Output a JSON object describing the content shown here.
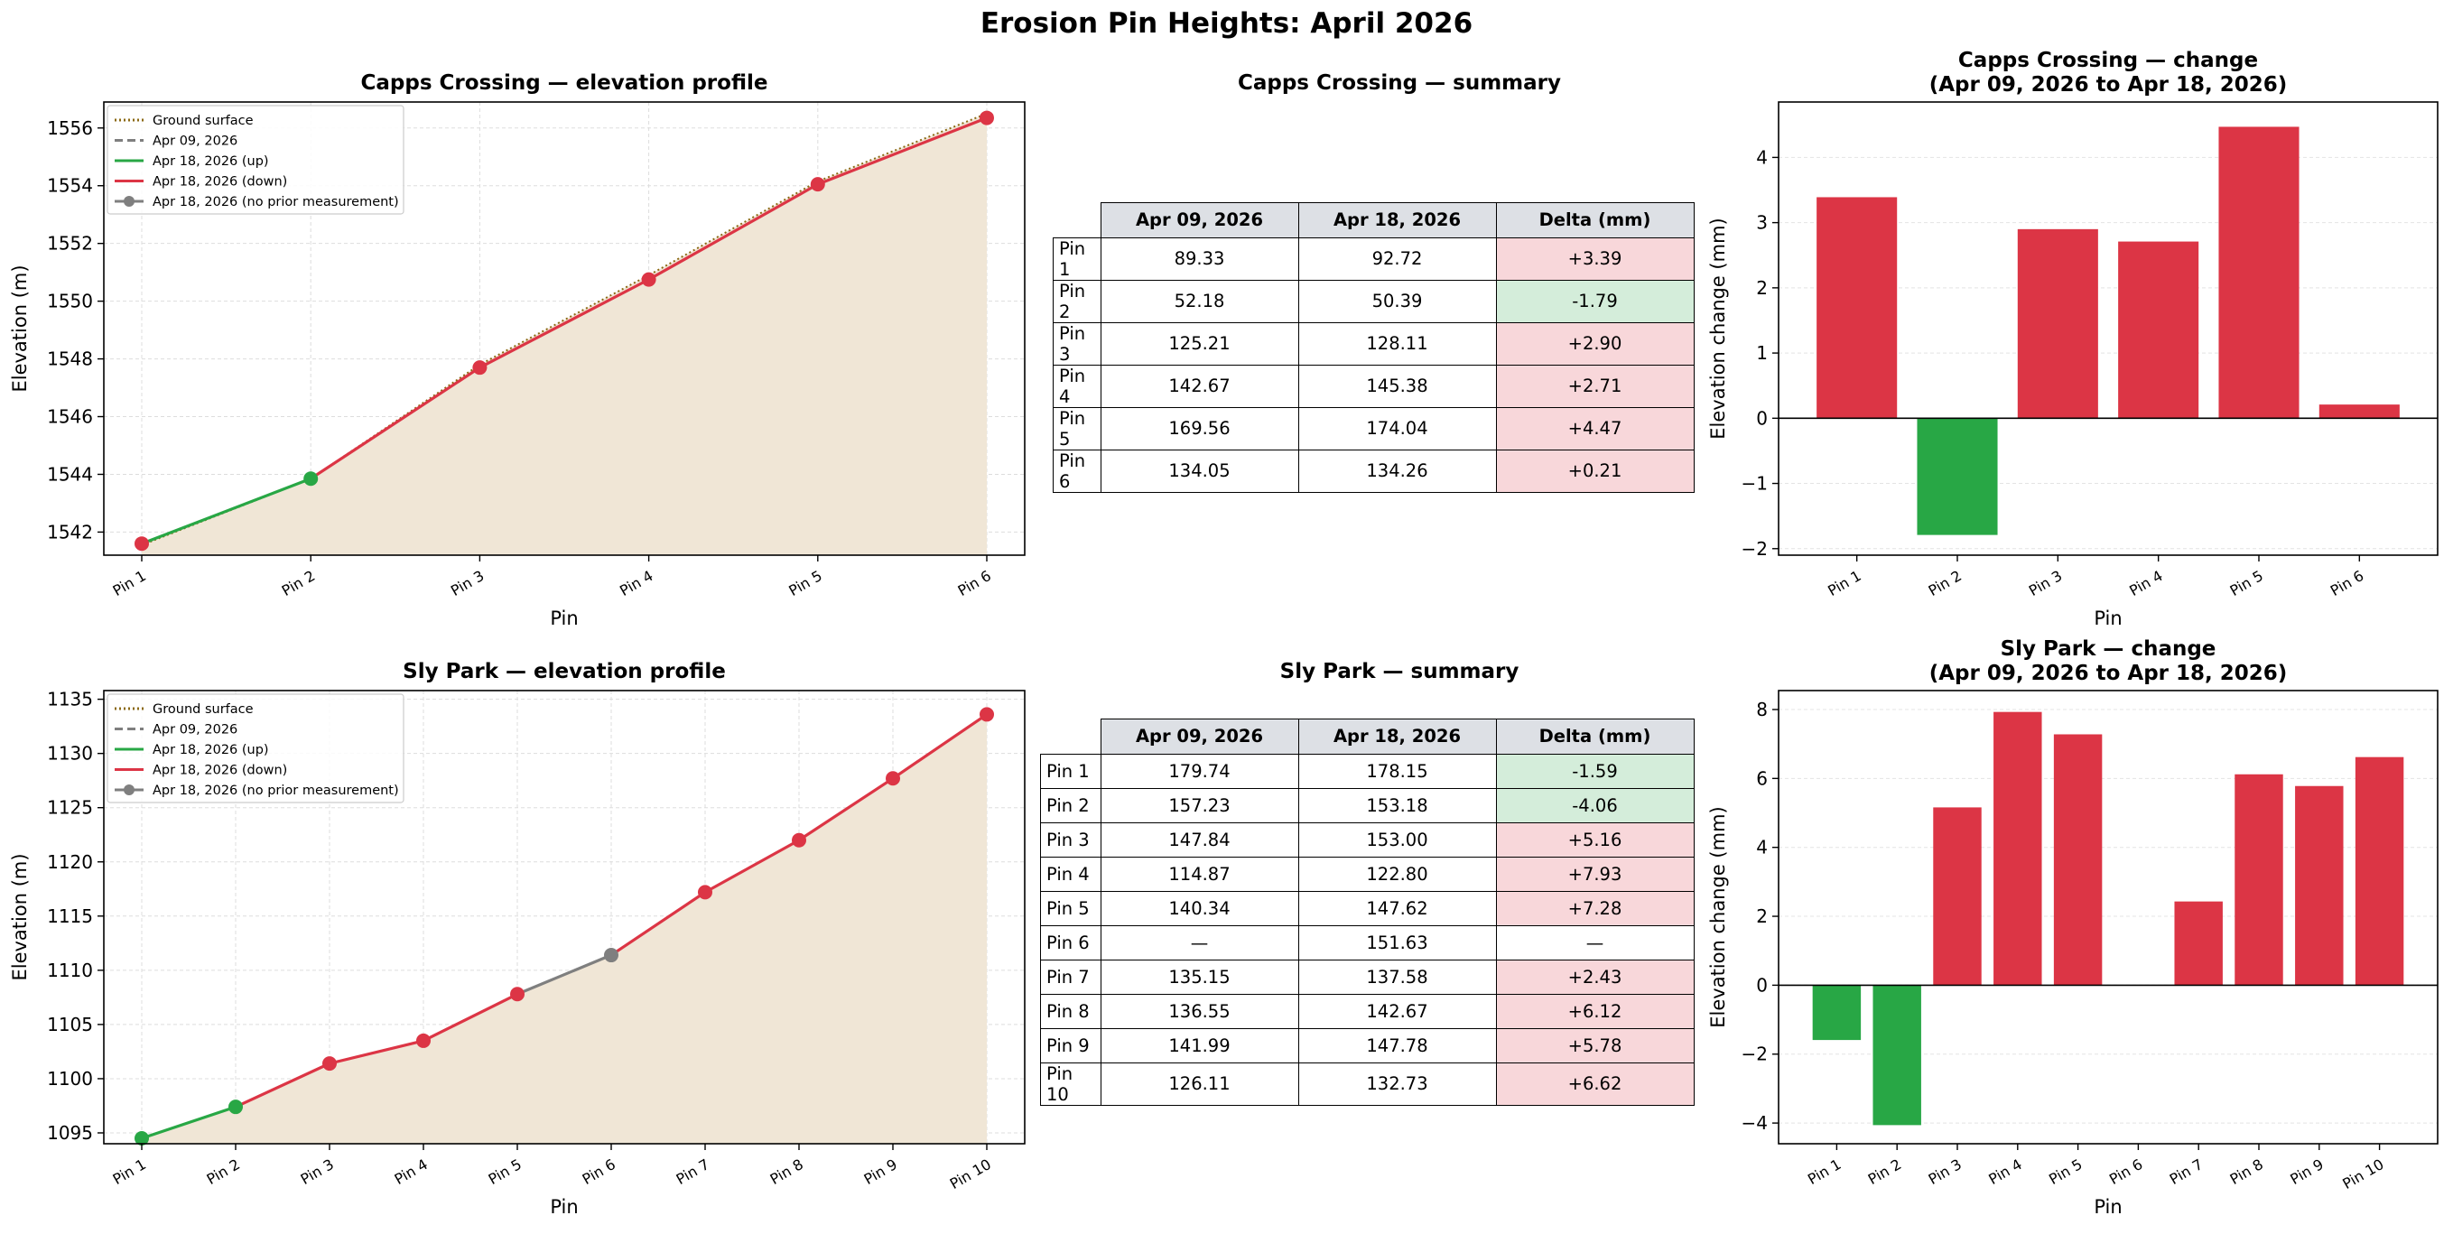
{
  "title": "Erosion Pin Heights: April 2026",
  "colors": {
    "up": "#28a745",
    "down": "#dc3545",
    "none": "#7f7f7f",
    "ground": "#8b6914",
    "fill": "#f0e6d6",
    "header": "#dde0e5",
    "pos_cell": "#f8d7da",
    "neg_cell": "#d4edda"
  },
  "legend": [
    "Ground surface",
    "Apr 09, 2026",
    "Apr 18, 2026 (up)",
    "Apr 18, 2026 (down)",
    "Apr 18, 2026 (no prior measurement)"
  ],
  "table_headers": [
    "Apr 09, 2026",
    "Apr 18, 2026",
    "Delta (mm)"
  ],
  "sites": [
    {
      "name": "Capps Crossing",
      "profile_title": "Capps Crossing — elevation profile",
      "summary_title": "Capps Crossing — summary",
      "change_title_1": "Capps Crossing — change",
      "change_title_2": "(Apr 09, 2026 to Apr 18, 2026)",
      "chart_data": {
        "type": "line",
        "xlabel": "Pin",
        "ylabel": "Elevation (m)",
        "categories": [
          "Pin 1",
          "Pin 2",
          "Pin 3",
          "Pin 4",
          "Pin 5",
          "Pin 6"
        ],
        "ylim": [
          1541.2,
          1556.9
        ],
        "yticks": [
          1542,
          1544,
          1546,
          1548,
          1550,
          1552,
          1554,
          1556
        ],
        "ground": [
          1541.55,
          1543.85,
          1547.8,
          1550.9,
          1554.15,
          1556.5
        ],
        "elevations": [
          1541.6,
          1543.85,
          1547.7,
          1550.75,
          1554.05,
          1556.35
        ],
        "directions": [
          "down",
          "up",
          "down",
          "down",
          "down",
          "down"
        ]
      },
      "rows": [
        {
          "pin": "Pin 1",
          "a": "89.33",
          "b": "92.72",
          "d": "+3.39",
          "sign": "pos"
        },
        {
          "pin": "Pin 2",
          "a": "52.18",
          "b": "50.39",
          "d": "-1.79",
          "sign": "neg"
        },
        {
          "pin": "Pin 3",
          "a": "125.21",
          "b": "128.11",
          "d": "+2.90",
          "sign": "pos"
        },
        {
          "pin": "Pin 4",
          "a": "142.67",
          "b": "145.38",
          "d": "+2.71",
          "sign": "pos"
        },
        {
          "pin": "Pin 5",
          "a": "169.56",
          "b": "174.04",
          "d": "+4.47",
          "sign": "pos"
        },
        {
          "pin": "Pin 6",
          "a": "134.05",
          "b": "134.26",
          "d": "+0.21",
          "sign": "pos"
        }
      ],
      "change_chart": {
        "type": "bar",
        "xlabel": "Pin",
        "ylabel": "Elevation change (mm)",
        "categories": [
          "Pin 1",
          "Pin 2",
          "Pin 3",
          "Pin 4",
          "Pin 5",
          "Pin 6"
        ],
        "values": [
          3.39,
          -1.79,
          2.9,
          2.71,
          4.47,
          0.21
        ],
        "ylim": [
          -2.1,
          4.85
        ],
        "yticks": [
          -2,
          -1,
          0,
          1,
          2,
          3,
          4
        ]
      }
    },
    {
      "name": "Sly Park",
      "profile_title": "Sly Park — elevation profile",
      "summary_title": "Sly Park — summary",
      "change_title_1": "Sly Park — change",
      "change_title_2": "(Apr 09, 2026 to Apr 18, 2026)",
      "chart_data": {
        "type": "line",
        "xlabel": "Pin",
        "ylabel": "Elevation (m)",
        "categories": [
          "Pin 1",
          "Pin 2",
          "Pin 3",
          "Pin 4",
          "Pin 5",
          "Pin 6",
          "Pin 7",
          "Pin 8",
          "Pin 9",
          "Pin 10"
        ],
        "ylim": [
          1094.0,
          1135.8
        ],
        "yticks": [
          1095,
          1100,
          1105,
          1110,
          1115,
          1120,
          1125,
          1130,
          1135
        ],
        "ground": [
          1094.5,
          1097.4,
          1101.4,
          1103.5,
          1107.8,
          1111.4,
          1117.2,
          1122.0,
          1127.7,
          1133.6
        ],
        "elevations": [
          1094.5,
          1097.4,
          1101.4,
          1103.5,
          1107.8,
          1111.4,
          1117.2,
          1122.0,
          1127.7,
          1133.6
        ],
        "directions": [
          "up",
          "up",
          "down",
          "down",
          "down",
          "none",
          "down",
          "down",
          "down",
          "down"
        ]
      },
      "rows": [
        {
          "pin": "Pin 1",
          "a": "179.74",
          "b": "178.15",
          "d": "-1.59",
          "sign": "neg"
        },
        {
          "pin": "Pin 2",
          "a": "157.23",
          "b": "153.18",
          "d": "-4.06",
          "sign": "neg"
        },
        {
          "pin": "Pin 3",
          "a": "147.84",
          "b": "153.00",
          "d": "+5.16",
          "sign": "pos"
        },
        {
          "pin": "Pin 4",
          "a": "114.87",
          "b": "122.80",
          "d": "+7.93",
          "sign": "pos"
        },
        {
          "pin": "Pin 5",
          "a": "140.34",
          "b": "147.62",
          "d": "+7.28",
          "sign": "pos"
        },
        {
          "pin": "Pin 6",
          "a": "—",
          "b": "151.63",
          "d": "—",
          "sign": "none"
        },
        {
          "pin": "Pin 7",
          "a": "135.15",
          "b": "137.58",
          "d": "+2.43",
          "sign": "pos"
        },
        {
          "pin": "Pin 8",
          "a": "136.55",
          "b": "142.67",
          "d": "+6.12",
          "sign": "pos"
        },
        {
          "pin": "Pin 9",
          "a": "141.99",
          "b": "147.78",
          "d": "+5.78",
          "sign": "pos"
        },
        {
          "pin": "Pin 10",
          "a": "126.11",
          "b": "132.73",
          "d": "+6.62",
          "sign": "pos"
        }
      ],
      "change_chart": {
        "type": "bar",
        "xlabel": "Pin",
        "ylabel": "Elevation change (mm)",
        "categories": [
          "Pin 1",
          "Pin 2",
          "Pin 3",
          "Pin 4",
          "Pin 5",
          "Pin 6",
          "Pin 7",
          "Pin 8",
          "Pin 9",
          "Pin 10"
        ],
        "values": [
          -1.59,
          -4.06,
          5.16,
          7.93,
          7.28,
          null,
          2.43,
          6.12,
          5.78,
          6.62
        ],
        "ylim": [
          -4.6,
          8.55
        ],
        "yticks": [
          -4,
          -2,
          0,
          2,
          4,
          6,
          8
        ]
      }
    }
  ]
}
